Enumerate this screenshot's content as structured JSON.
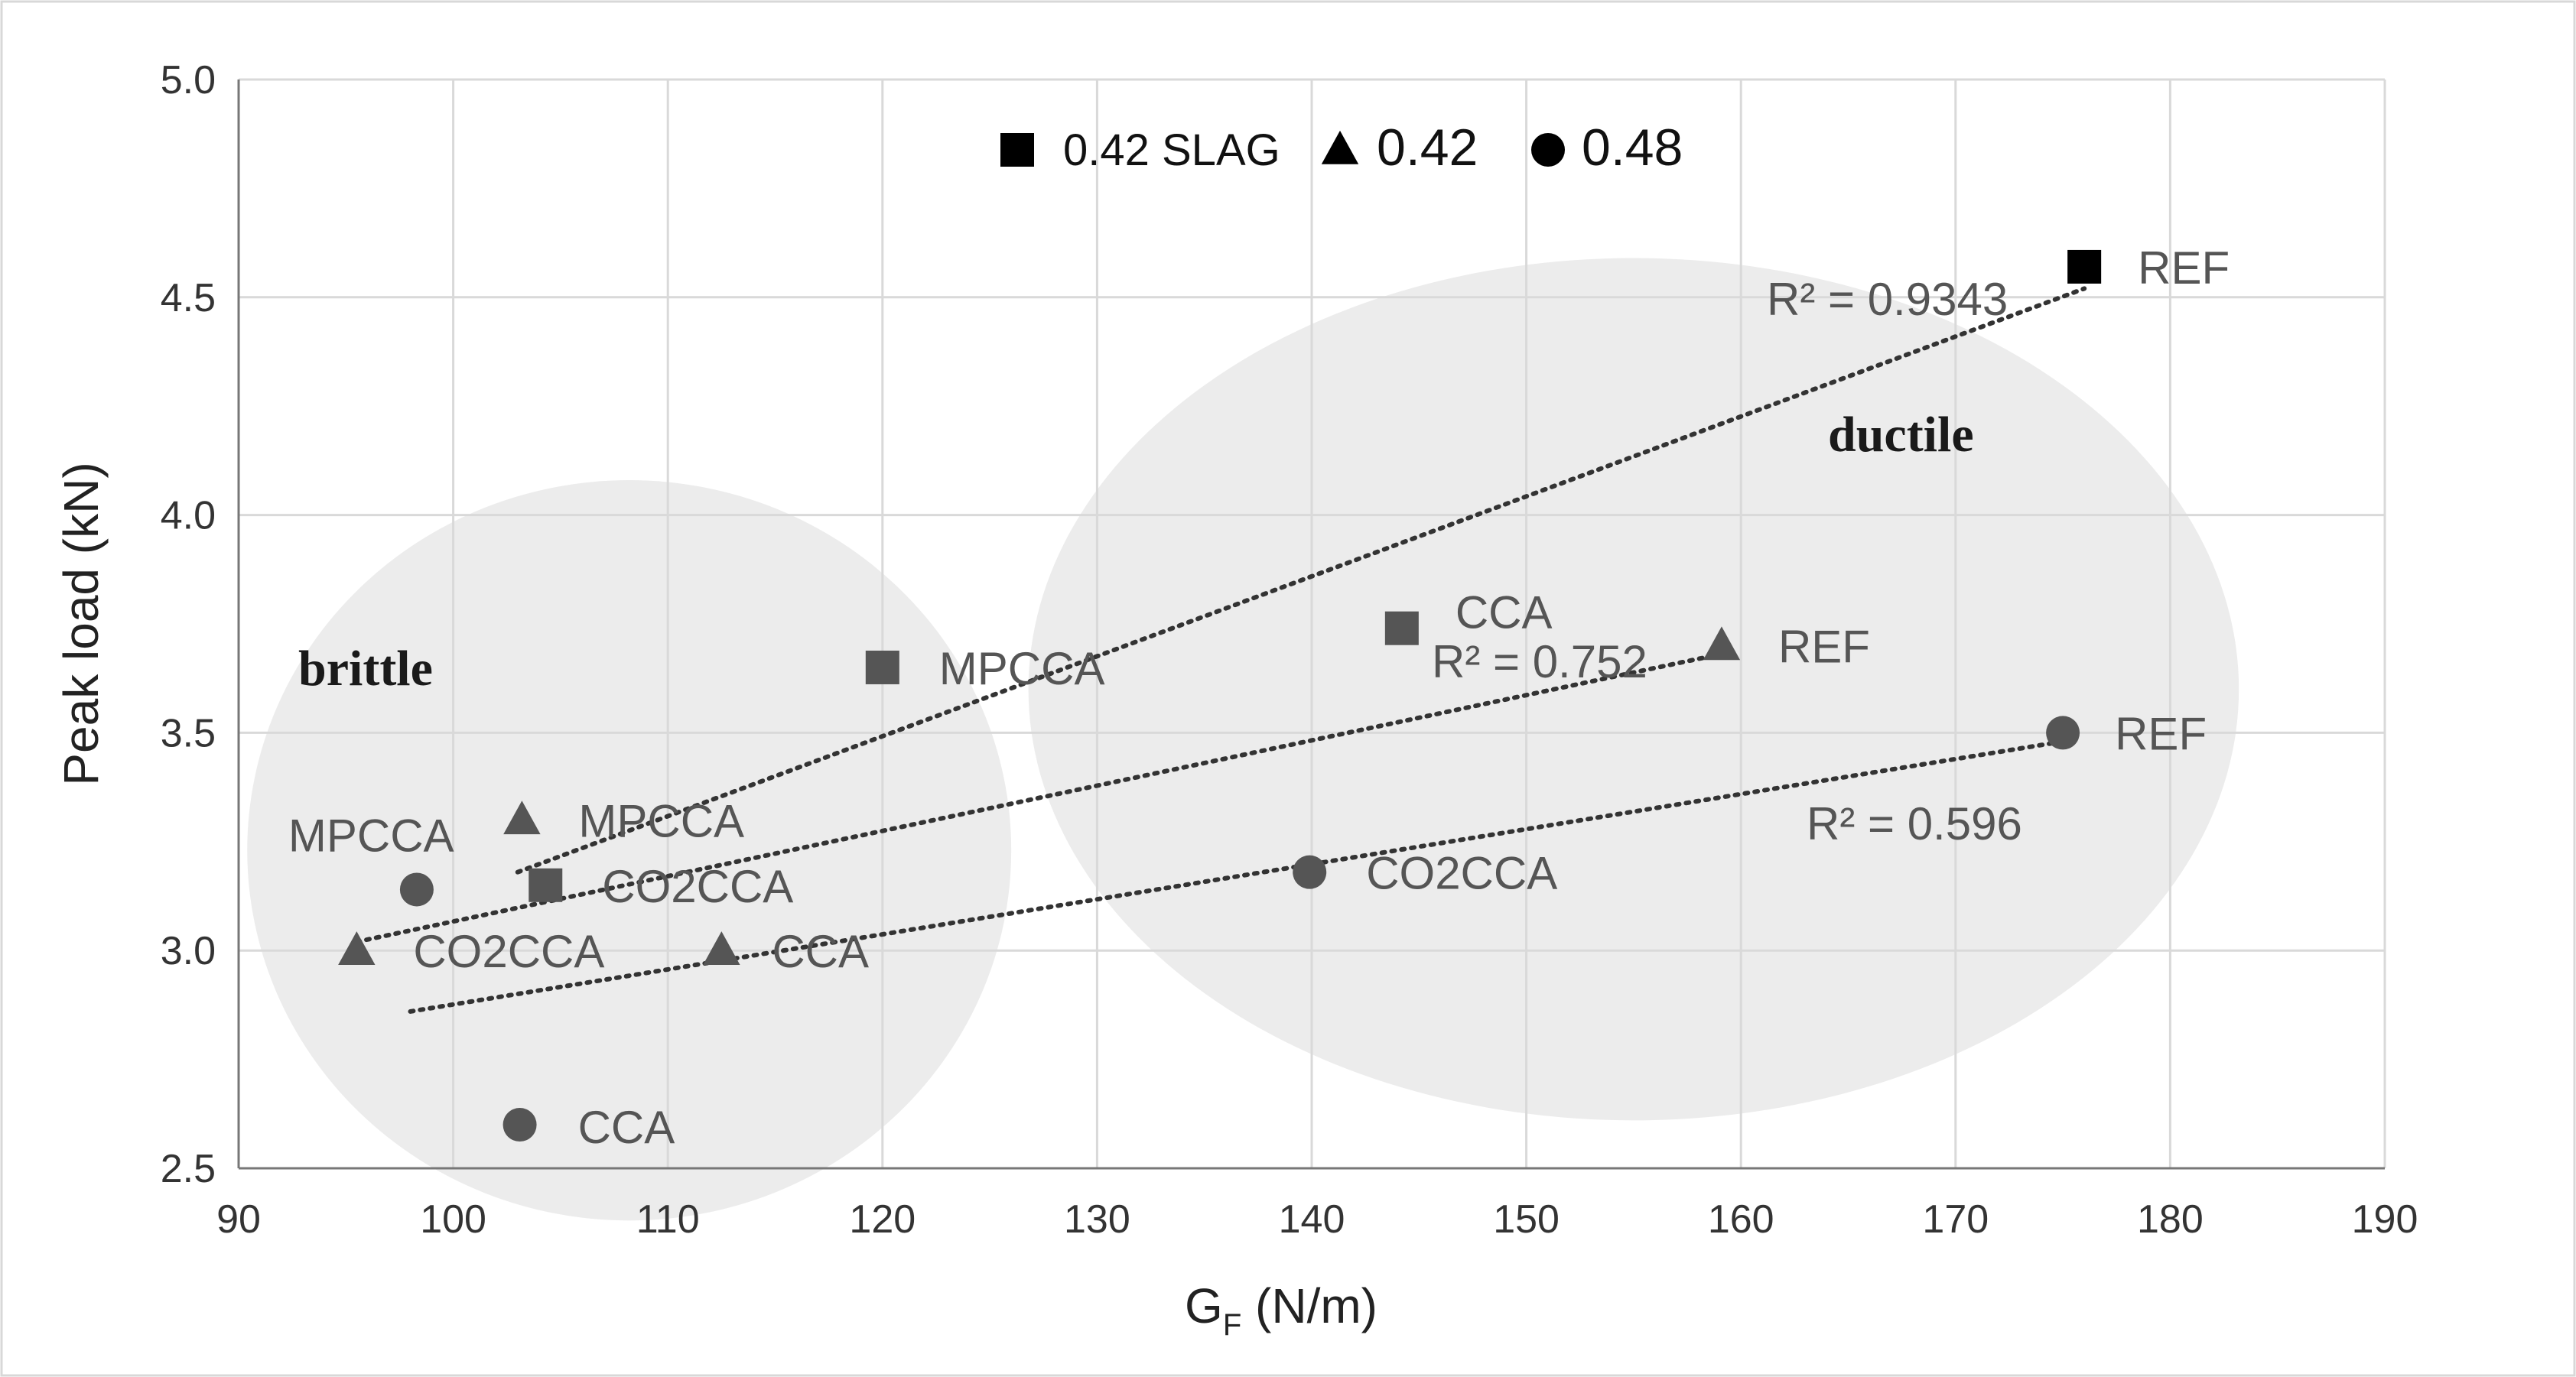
{
  "chart_data": {
    "type": "scatter",
    "xlabel": "G",
    "xlabel_sub": "F",
    "xlabel_unit": " (N/m)",
    "ylabel": "Peak load (kN)",
    "xlim": [
      90,
      190
    ],
    "ylim": [
      2.5,
      5.0
    ],
    "xticks": [
      "90",
      "100",
      "110",
      "120",
      "130",
      "140",
      "150",
      "160",
      "170",
      "180",
      "190"
    ],
    "yticks": [
      "2.5",
      "3.0",
      "3.5",
      "4.0",
      "4.5",
      "5.0"
    ],
    "grid": true,
    "legend_position": "top-center",
    "colors": {
      "slag": "#000000",
      "w042": "#444444",
      "w048": "#555555",
      "region_fill": "#ececec",
      "grid": "#d9d9d9"
    },
    "series": [
      {
        "name": "0.42 SLAG",
        "marker": "square",
        "points": [
          {
            "x": 104.3,
            "y": 3.15,
            "label": "CO2CCA"
          },
          {
            "x": 120.0,
            "y": 3.65,
            "label": "MPCCA"
          },
          {
            "x": 144.2,
            "y": 3.74,
            "label": "CCA"
          },
          {
            "x": 176.0,
            "y": 4.57,
            "label": "REF"
          }
        ],
        "trendline": {
          "x": [
            103.0,
            176.0
          ],
          "y": [
            3.18,
            4.52
          ],
          "r2": "R² = 0.9343"
        }
      },
      {
        "name": "0.42",
        "marker": "triangle",
        "points": [
          {
            "x": 95.5,
            "y": 3.0,
            "label": "CO2CCA"
          },
          {
            "x": 103.2,
            "y": 3.3,
            "label": "MPCCA"
          },
          {
            "x": 112.5,
            "y": 3.0,
            "label": "CCA"
          },
          {
            "x": 159.1,
            "y": 3.7,
            "label": "REF"
          }
        ],
        "trendline": {
          "x": [
            95.5,
            159.0
          ],
          "y": [
            3.02,
            3.68
          ],
          "r2": "R² = 0.752"
        }
      },
      {
        "name": "0.48",
        "marker": "circle",
        "points": [
          {
            "x": 98.3,
            "y": 3.14,
            "label": "MPCCA"
          },
          {
            "x": 103.1,
            "y": 2.6,
            "label": "CCA"
          },
          {
            "x": 139.9,
            "y": 3.18,
            "label": "CO2CCA"
          },
          {
            "x": 175.0,
            "y": 3.5,
            "label": "REF"
          }
        ],
        "trendline": {
          "x": [
            98.0,
            175.0
          ],
          "y": [
            2.86,
            3.48
          ],
          "r2": "R² = 0.596"
        }
      }
    ],
    "regions": [
      {
        "label": "brittle",
        "cx": 108.2,
        "cy": 3.23,
        "rx": 17.8,
        "ry": 0.85
      },
      {
        "label": "ductile",
        "cx": 155.0,
        "cy": 3.6,
        "rx": 28.2,
        "ry": 0.99
      }
    ]
  }
}
